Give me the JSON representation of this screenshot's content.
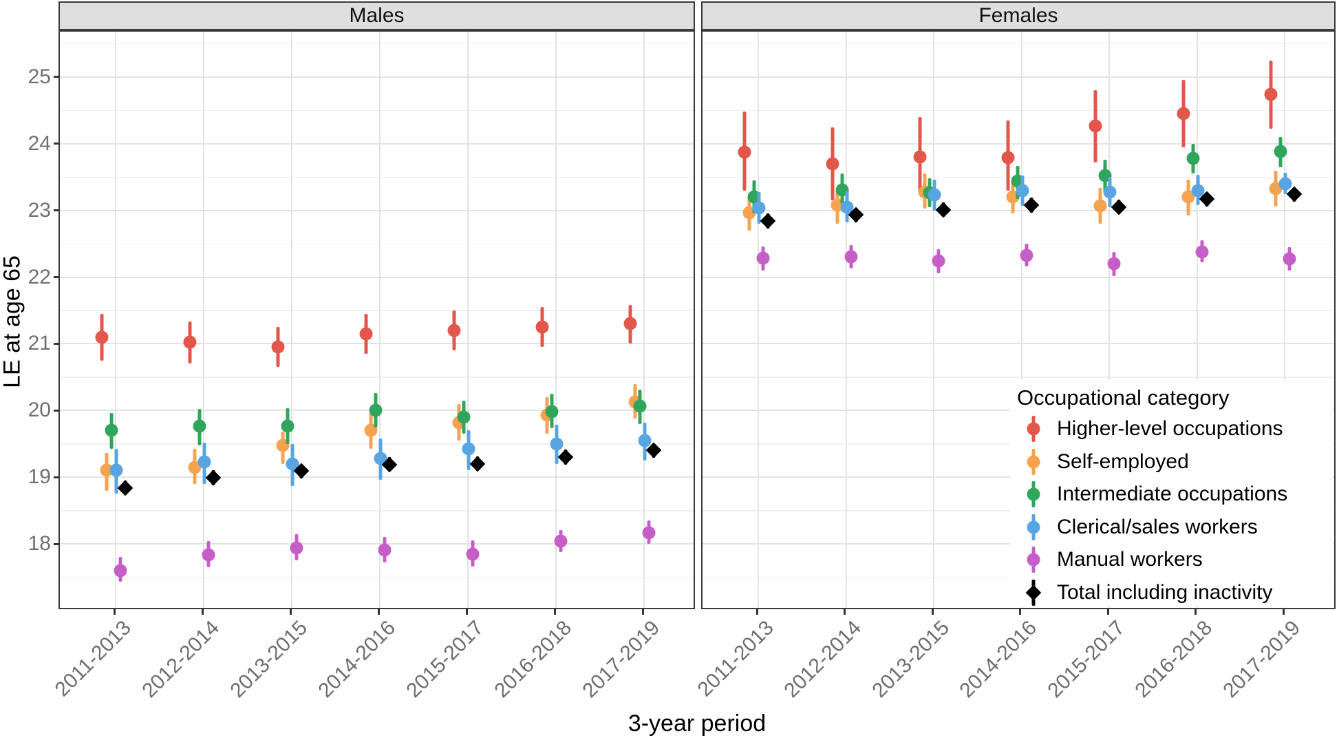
{
  "chart_data": {
    "type": "scatter",
    "subtype": "pointrange-dodged-facets",
    "xlabel": "3-year period",
    "ylabel": "LE at age 65",
    "legend_title": "Occupational category",
    "legend_position": "inside-bottom-right",
    "grid": "major-horizontal, minor-horizontal, major-vertical-at-ticks",
    "categories": [
      "2011-2013",
      "2012-2014",
      "2013-2015",
      "2014-2016",
      "2015-2017",
      "2016-2018",
      "2017-2019"
    ],
    "y_ticks": [
      18,
      19,
      20,
      21,
      22,
      23,
      24,
      25
    ],
    "ylim": [
      17.0,
      25.7
    ],
    "colors": {
      "higher": "#e2574a",
      "self_employed": "#f5a34e",
      "intermediate": "#30a65c",
      "clerical": "#58a5e2",
      "manual": "#c55fc7",
      "total": "#000000",
      "strip_bg": "#dedede",
      "grid_major": "#e3e3e3",
      "grid_minor": "#f0f0f0"
    },
    "series_meta": [
      {
        "name": "Higher-level occupations",
        "color": "#e2574a",
        "marker": "circle"
      },
      {
        "name": "Self-employed",
        "color": "#f5a34e",
        "marker": "circle"
      },
      {
        "name": "Intermediate occupations",
        "color": "#30a65c",
        "marker": "circle"
      },
      {
        "name": "Clerical/sales workers",
        "color": "#58a5e2",
        "marker": "circle"
      },
      {
        "name": "Manual workers",
        "color": "#c55fc7",
        "marker": "circle"
      },
      {
        "name": "Total including inactivity",
        "color": "#000000",
        "marker": "diamond"
      }
    ],
    "facets": [
      {
        "label": "Males",
        "series": [
          {
            "name": "Higher-level occupations",
            "est": [
              21.1,
              21.02,
              20.95,
              21.15,
              21.2,
              21.25,
              21.3
            ],
            "lo": [
              20.75,
              20.7,
              20.65,
              20.85,
              20.9,
              20.95,
              21.0
            ],
            "hi": [
              21.45,
              21.33,
              21.25,
              21.45,
              21.5,
              21.55,
              21.58
            ]
          },
          {
            "name": "Self-employed",
            "est": [
              19.1,
              19.15,
              19.48,
              19.7,
              19.82,
              19.93,
              20.13
            ],
            "lo": [
              18.8,
              18.9,
              19.2,
              19.42,
              19.55,
              19.65,
              19.88
            ],
            "hi": [
              19.36,
              19.42,
              19.68,
              19.96,
              20.1,
              20.2,
              20.4
            ]
          },
          {
            "name": "Intermediate occupations",
            "est": [
              19.7,
              19.77,
              19.77,
              20.0,
              19.9,
              19.98,
              20.07
            ],
            "lo": [
              19.42,
              19.48,
              19.5,
              19.74,
              19.65,
              19.73,
              19.8
            ],
            "hi": [
              19.96,
              20.02,
              20.03,
              20.26,
              20.15,
              20.25,
              20.31
            ]
          },
          {
            "name": "Clerical/sales workers",
            "est": [
              19.1,
              19.23,
              19.2,
              19.28,
              19.43,
              19.5,
              19.55
            ],
            "lo": [
              18.75,
              18.9,
              18.87,
              18.96,
              19.11,
              19.2,
              19.25
            ],
            "hi": [
              19.42,
              19.52,
              19.5,
              19.58,
              19.7,
              19.79,
              19.82
            ]
          },
          {
            "name": "Manual workers",
            "est": [
              17.6,
              17.84,
              17.94,
              17.91,
              17.85,
              18.04,
              18.17
            ],
            "lo": [
              17.43,
              17.65,
              17.75,
              17.72,
              17.66,
              17.88,
              18.0
            ],
            "hi": [
              17.8,
              18.04,
              18.14,
              18.1,
              18.05,
              18.21,
              18.35
            ]
          },
          {
            "name": "Total including inactivity",
            "est": [
              18.84,
              18.99,
              19.09,
              19.19,
              19.2,
              19.3,
              19.4
            ],
            "lo": [
              18.73,
              18.88,
              18.98,
              19.08,
              19.09,
              19.19,
              19.29
            ],
            "hi": [
              18.95,
              19.1,
              19.2,
              19.3,
              19.31,
              19.41,
              19.51
            ]
          }
        ]
      },
      {
        "label": "Females",
        "series": [
          {
            "name": "Higher-level occupations",
            "est": [
              23.87,
              23.7,
              23.8,
              23.79,
              24.27,
              24.45,
              24.74
            ],
            "lo": [
              23.3,
              23.15,
              23.25,
              23.3,
              23.72,
              23.95,
              24.22
            ],
            "hi": [
              24.48,
              24.25,
              24.4,
              24.35,
              24.8,
              24.96,
              25.25
            ]
          },
          {
            "name": "Self-employed",
            "est": [
              22.97,
              23.08,
              23.28,
              23.2,
              23.07,
              23.2,
              23.33
            ],
            "lo": [
              22.7,
              22.8,
              23.03,
              22.95,
              22.8,
              22.92,
              23.06
            ],
            "hi": [
              23.24,
              23.34,
              23.55,
              23.46,
              23.34,
              23.46,
              23.6
            ]
          },
          {
            "name": "Intermediate occupations",
            "est": [
              23.2,
              23.31,
              23.26,
              23.44,
              23.52,
              23.78,
              23.88
            ],
            "lo": [
              22.96,
              23.1,
              23.05,
              23.17,
              23.28,
              23.55,
              23.65
            ],
            "hi": [
              23.45,
              23.55,
              23.48,
              23.67,
              23.76,
              24.0,
              24.1
            ]
          },
          {
            "name": "Clerical/sales workers",
            "est": [
              23.04,
              23.05,
              23.23,
              23.3,
              23.28,
              23.3,
              23.4
            ],
            "lo": [
              22.8,
              22.82,
              23.0,
              23.07,
              23.05,
              23.08,
              23.24
            ],
            "hi": [
              23.28,
              23.3,
              23.46,
              23.52,
              23.5,
              23.53,
              23.56
            ]
          },
          {
            "name": "Manual workers",
            "est": [
              22.28,
              22.3,
              22.24,
              22.33,
              22.2,
              22.38,
              22.27
            ],
            "lo": [
              22.1,
              22.13,
              22.06,
              22.16,
              22.02,
              22.22,
              22.1
            ],
            "hi": [
              22.46,
              22.48,
              22.42,
              22.5,
              22.38,
              22.55,
              22.45
            ]
          },
          {
            "name": "Total including inactivity",
            "est": [
              22.84,
              22.93,
              23.01,
              23.08,
              23.05,
              23.17,
              23.24
            ],
            "lo": [
              22.73,
              22.82,
              22.9,
              22.97,
              22.94,
              23.06,
              23.13
            ],
            "hi": [
              22.95,
              23.04,
              23.12,
              23.19,
              23.16,
              23.28,
              23.35
            ]
          }
        ]
      }
    ]
  }
}
